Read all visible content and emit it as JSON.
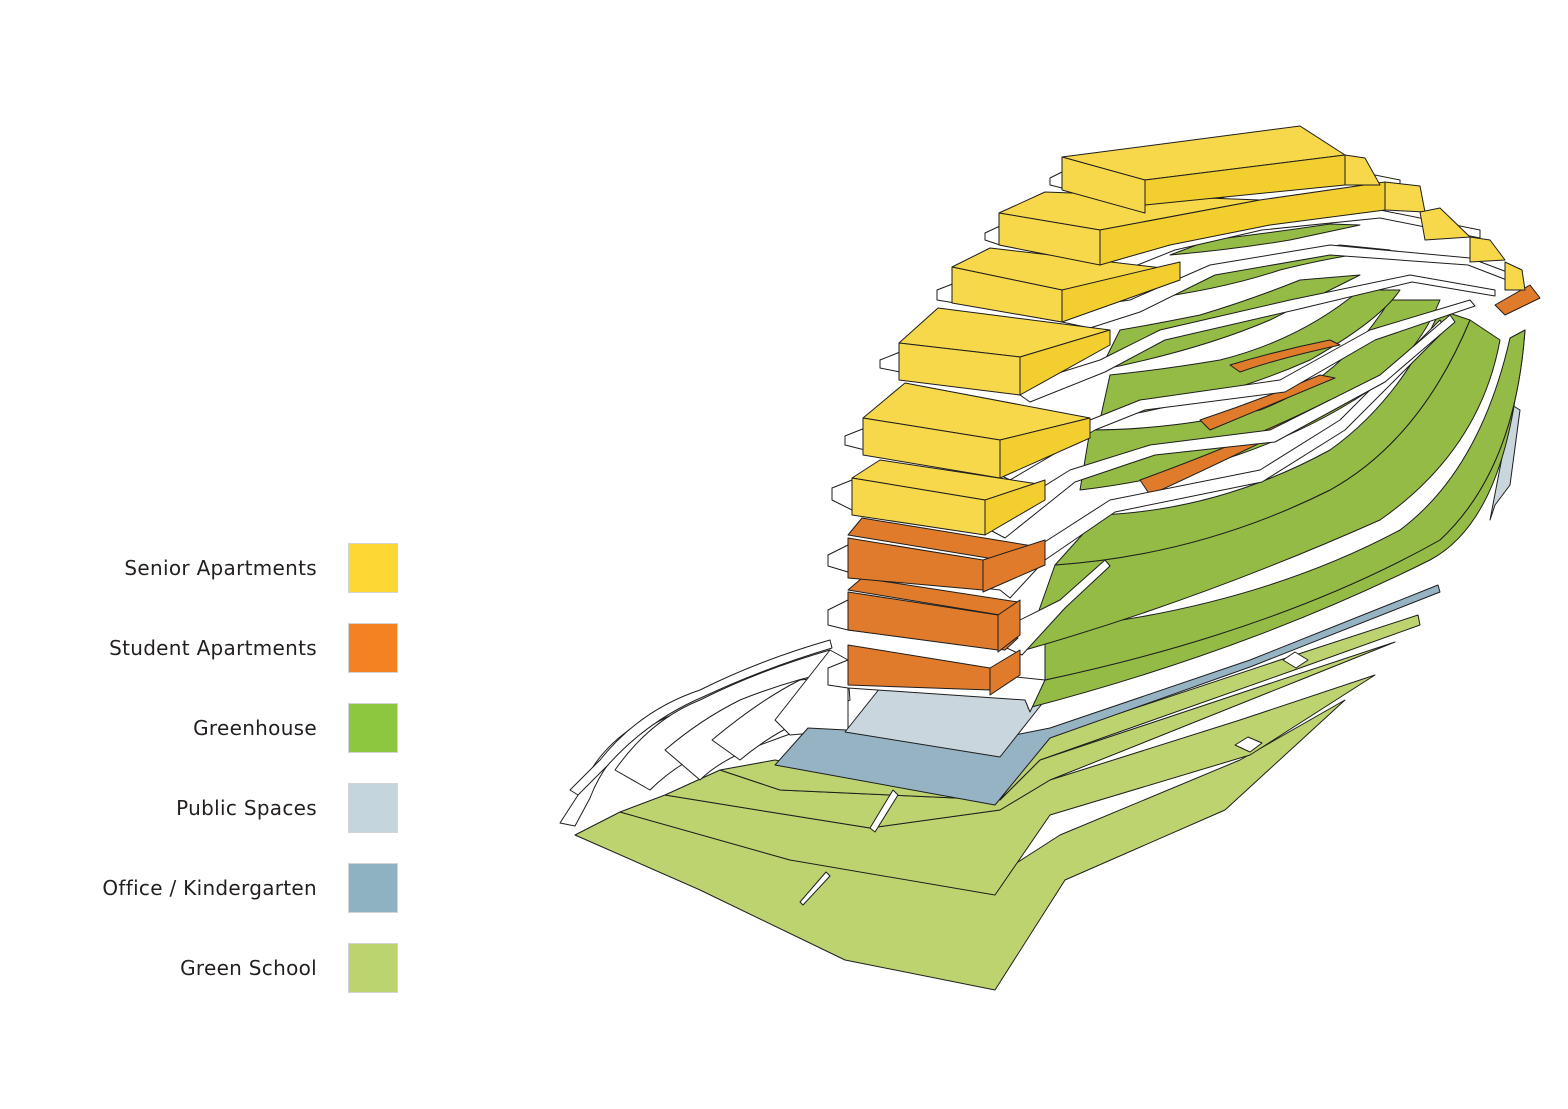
{
  "legend": {
    "items": [
      {
        "label": "Senior Apartments",
        "color": "#fdd835"
      },
      {
        "label": "Student Apartments",
        "color": "#f58220"
      },
      {
        "label": "Greenhouse",
        "color": "#8dc63f"
      },
      {
        "label": "Public Spaces",
        "color": "#c5d5de"
      },
      {
        "label": "Office / Kindergarten",
        "color": "#8fb2c2"
      },
      {
        "label": "Green School",
        "color": "#bbd46f"
      }
    ]
  },
  "building": {
    "colors": {
      "senior": "#f7d84a",
      "senior_side": "#f2ce2e",
      "student": "#e07b2c",
      "greenhouse": "#93bb45",
      "greenhouse_dark": "#84ad38",
      "public": "#c9d6de",
      "office": "#95b3c3",
      "school": "#bdd370",
      "slab": "#ffffff",
      "line": "#1e1e1e"
    }
  }
}
